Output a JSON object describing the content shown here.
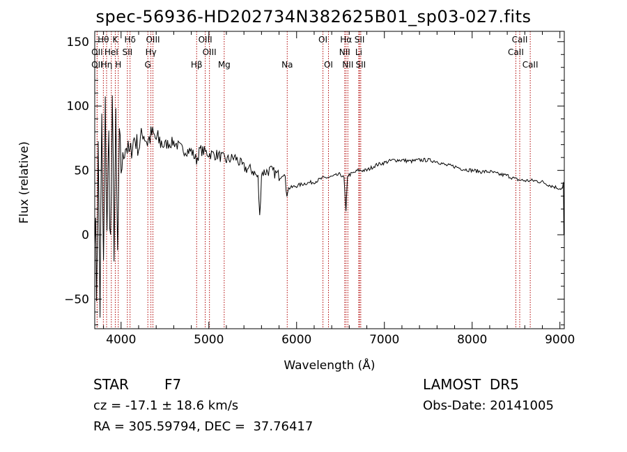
{
  "title": "spec-56936-HD202734N382625B01_sp03-027.fits",
  "info": {
    "class_label": "STAR",
    "subclass": "F7",
    "survey": "LAMOST  DR5",
    "cz": "cz = -17.1 ± 18.6 km/s",
    "obs_date": "Obs-Date: 20141005",
    "coords": "RA = 305.59794, DEC =  37.76417"
  },
  "chart_data": {
    "type": "line",
    "xlabel": "Wavelength (Å)",
    "ylabel": "Flux (relative)",
    "xlim": [
      3700,
      9050
    ],
    "ylim": [
      -73,
      158
    ],
    "xticks": [
      4000,
      5000,
      6000,
      7000,
      8000,
      9000
    ],
    "yticks": [
      -50,
      0,
      50,
      100,
      150
    ],
    "spectrum": {
      "x": [
        3700,
        3720,
        3740,
        3760,
        3780,
        3800,
        3820,
        3840,
        3860,
        3880,
        3900,
        3920,
        3940,
        3960,
        3980,
        4000,
        4050,
        4100,
        4150,
        4200,
        4250,
        4300,
        4350,
        4400,
        4500,
        4600,
        4700,
        4800,
        4860,
        4900,
        5000,
        5100,
        5200,
        5300,
        5400,
        5500,
        5560,
        5580,
        5600,
        5700,
        5800,
        5850,
        5890,
        5910,
        6000,
        6100,
        6200,
        6300,
        6400,
        6500,
        6540,
        6562,
        6580,
        6650,
        6700,
        6800,
        6900,
        7000,
        7100,
        7200,
        7300,
        7400,
        7500,
        7600,
        7700,
        7800,
        7900,
        8000,
        8100,
        8200,
        8300,
        8400,
        8500,
        8600,
        8700,
        8800,
        8900,
        9000,
        9030,
        9040,
        9045
      ],
      "y": [
        20,
        -40,
        60,
        -55,
        80,
        -30,
        90,
        10,
        70,
        -10,
        85,
        0,
        75,
        -20,
        60,
        50,
        70,
        62,
        75,
        68,
        80,
        72,
        78,
        74,
        70,
        72,
        66,
        65,
        58,
        66,
        63,
        62,
        58,
        60,
        52,
        50,
        44,
        13,
        48,
        50,
        46,
        50,
        33,
        36,
        38,
        40,
        41,
        44,
        45,
        47,
        44,
        17,
        46,
        48,
        50,
        50,
        54,
        56,
        58,
        58,
        57,
        58,
        58,
        57,
        54,
        53,
        51,
        50,
        49,
        49,
        47,
        46,
        43,
        42,
        42,
        41,
        38,
        36,
        36,
        40,
        0
      ]
    },
    "lines": [
      {
        "label": "Hθ",
        "x": 3798,
        "row": 0
      },
      {
        "label": "K",
        "x": 3934,
        "row": 0
      },
      {
        "label": "Hδ",
        "x": 4102,
        "row": 0
      },
      {
        "label": "OIII",
        "x": 4363,
        "row": 0
      },
      {
        "label": "OIII",
        "x": 4959,
        "row": 0
      },
      {
        "label": "OI",
        "x": 6300,
        "row": 0
      },
      {
        "label": "Hα",
        "x": 6563,
        "row": 0
      },
      {
        "label": "SII",
        "x": 6717,
        "row": 0
      },
      {
        "label": "CaII",
        "x": 8542,
        "row": 0
      },
      {
        "label": "OII",
        "x": 3727,
        "row": 1
      },
      {
        "label": "HeI",
        "x": 3889,
        "row": 1
      },
      {
        "label": "SII",
        "x": 4072,
        "row": 1
      },
      {
        "label": "Hγ",
        "x": 4340,
        "row": 1
      },
      {
        "label": "OIII",
        "x": 5007,
        "row": 1
      },
      {
        "label": "NII",
        "x": 6548,
        "row": 1
      },
      {
        "label": "Li",
        "x": 6708,
        "row": 1
      },
      {
        "label": "CaII",
        "x": 8498,
        "row": 1
      },
      {
        "label": "OII",
        "x": 3727,
        "row": 2
      },
      {
        "label": "Hη",
        "x": 3835,
        "row": 2
      },
      {
        "label": "H",
        "x": 3968,
        "row": 2
      },
      {
        "label": "G",
        "x": 4305,
        "row": 2
      },
      {
        "label": "Hβ",
        "x": 4861,
        "row": 2
      },
      {
        "label": "Mg",
        "x": 5175,
        "row": 2
      },
      {
        "label": "Na",
        "x": 5893,
        "row": 2
      },
      {
        "label": "OI",
        "x": 6363,
        "row": 2
      },
      {
        "label": "NII",
        "x": 6584,
        "row": 2
      },
      {
        "label": "SII",
        "x": 6731,
        "row": 2
      },
      {
        "label": "CaII",
        "x": 8662,
        "row": 2
      }
    ]
  }
}
